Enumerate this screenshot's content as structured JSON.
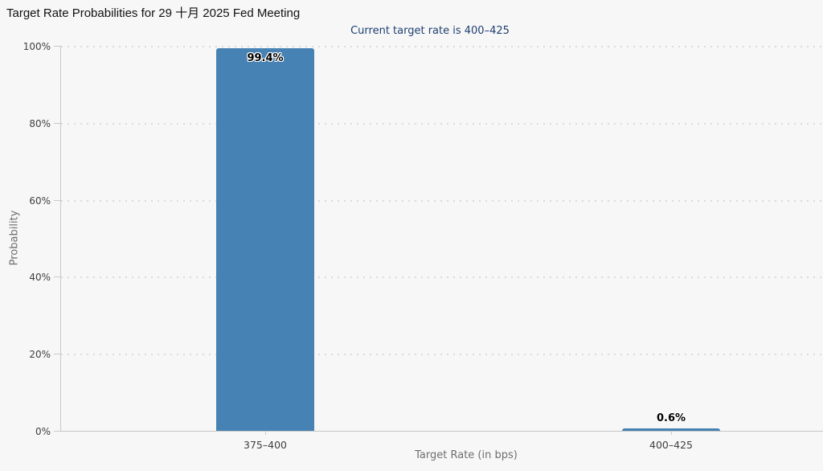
{
  "chart_data": {
    "type": "bar",
    "title": "Target Rate Probabilities for 29 十月 2025 Fed Meeting",
    "subtitle": "Current target rate is 400–425",
    "xlabel": "Target Rate (in bps)",
    "ylabel": "Probability",
    "categories": [
      "375–400",
      "400–425"
    ],
    "values": [
      99.4,
      0.6
    ],
    "bar_labels": [
      "99.4%",
      "0.6%"
    ],
    "yticks": [
      0,
      20,
      40,
      60,
      80,
      100
    ],
    "ytick_labels": [
      "0%",
      "20%",
      "40%",
      "60%",
      "80%",
      "100%"
    ],
    "ylim": [
      0,
      100
    ],
    "grid": "horizontal-dotted",
    "legend": "none",
    "bar_color": "#4682b4",
    "background_color": "#f7f7f7",
    "subtitle_color": "#1e3f70"
  }
}
